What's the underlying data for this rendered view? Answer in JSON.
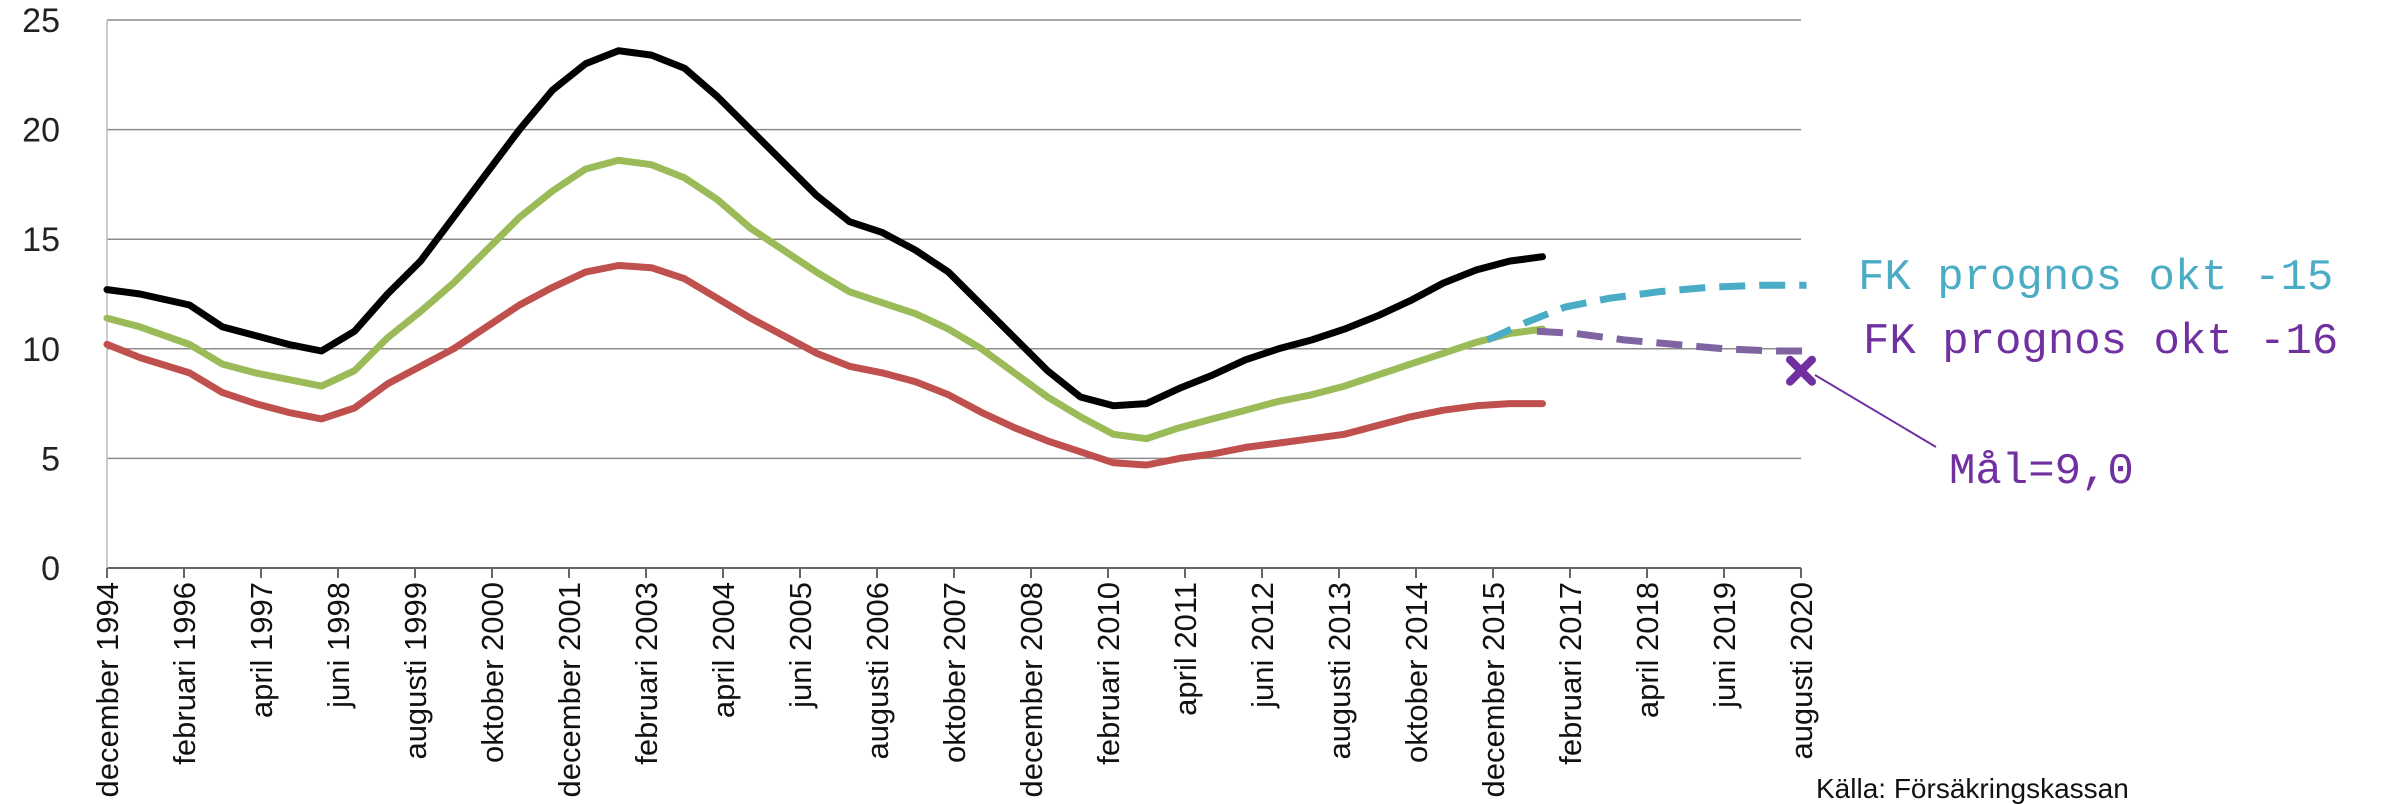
{
  "chart_data": {
    "type": "line",
    "title": "",
    "xlabel": "",
    "ylabel": "",
    "ylim": [
      0,
      25
    ],
    "yticks": [
      0,
      5,
      10,
      15,
      20,
      25
    ],
    "grid": "horizontal",
    "x_start": "december 1994",
    "x_end": "augusti 2020",
    "x_tick_labels": [
      "december 1994",
      "februari 1996",
      "april 1997",
      "juni 1998",
      "augusti 1999",
      "oktober 2000",
      "december 2001",
      "februari 2003",
      "april 2004",
      "juni 2005",
      "augusti 2006",
      "oktober 2007",
      "december 2008",
      "februari 2010",
      "april 2011",
      "juni 2012",
      "augusti 2013",
      "oktober 2014",
      "december 2015",
      "februari 2017",
      "april 2018",
      "juni 2019",
      "augusti 2020"
    ],
    "series": [
      {
        "color": "#000000",
        "style": "solid",
        "x": [
          "1994-12",
          "1995-06",
          "1996-03",
          "1996-09",
          "1997-03",
          "1997-09",
          "1998-03",
          "1998-09",
          "1999-03",
          "1999-09",
          "2000-03",
          "2000-09",
          "2001-03",
          "2001-09",
          "2002-03",
          "2002-09",
          "2003-03",
          "2003-09",
          "2004-03",
          "2004-09",
          "2005-03",
          "2005-09",
          "2006-03",
          "2006-09",
          "2007-03",
          "2007-09",
          "2008-03",
          "2008-09",
          "2009-03",
          "2009-09",
          "2010-03",
          "2010-09",
          "2011-03",
          "2011-09",
          "2012-03",
          "2012-09",
          "2013-03",
          "2013-09",
          "2014-03",
          "2014-09",
          "2015-03",
          "2015-09",
          "2016-03",
          "2016-09"
        ],
        "y": [
          12.7,
          12.5,
          12.0,
          11.0,
          10.6,
          10.2,
          9.9,
          10.8,
          12.5,
          14.0,
          16.0,
          18.0,
          20.0,
          21.8,
          23.0,
          23.6,
          23.4,
          22.8,
          21.5,
          20.0,
          18.5,
          17.0,
          15.8,
          15.3,
          14.5,
          13.5,
          12.0,
          10.5,
          9.0,
          7.8,
          7.4,
          7.5,
          8.2,
          8.8,
          9.5,
          10.0,
          10.4,
          10.9,
          11.5,
          12.2,
          13.0,
          13.6,
          14.0,
          14.2
        ]
      },
      {
        "color": "#9bbb59",
        "style": "solid",
        "x": [
          "1994-12",
          "1995-06",
          "1996-03",
          "1996-09",
          "1997-03",
          "1997-09",
          "1998-03",
          "1998-09",
          "1999-03",
          "1999-09",
          "2000-03",
          "2000-09",
          "2001-03",
          "2001-09",
          "2002-03",
          "2002-09",
          "2003-03",
          "2003-09",
          "2004-03",
          "2004-09",
          "2005-03",
          "2005-09",
          "2006-03",
          "2006-09",
          "2007-03",
          "2007-09",
          "2008-03",
          "2008-09",
          "2009-03",
          "2009-09",
          "2010-03",
          "2010-09",
          "2011-03",
          "2011-09",
          "2012-03",
          "2012-09",
          "2013-03",
          "2013-09",
          "2014-03",
          "2014-09",
          "2015-03",
          "2015-09",
          "2016-03",
          "2016-09"
        ],
        "y": [
          11.4,
          11.0,
          10.2,
          9.3,
          8.9,
          8.6,
          8.3,
          9.0,
          10.5,
          11.7,
          13.0,
          14.5,
          16.0,
          17.2,
          18.2,
          18.6,
          18.4,
          17.8,
          16.8,
          15.5,
          14.5,
          13.5,
          12.6,
          12.1,
          11.6,
          10.9,
          10.0,
          8.9,
          7.8,
          6.9,
          6.1,
          5.9,
          6.4,
          6.8,
          7.2,
          7.6,
          7.9,
          8.3,
          8.8,
          9.3,
          9.8,
          10.3,
          10.7,
          10.9
        ]
      },
      {
        "color": "#c0504d",
        "style": "solid",
        "x": [
          "1994-12",
          "1995-06",
          "1996-03",
          "1996-09",
          "1997-03",
          "1997-09",
          "1998-03",
          "1998-09",
          "1999-03",
          "1999-09",
          "2000-03",
          "2000-09",
          "2001-03",
          "2001-09",
          "2002-03",
          "2002-09",
          "2003-03",
          "2003-09",
          "2004-03",
          "2004-09",
          "2005-03",
          "2005-09",
          "2006-03",
          "2006-09",
          "2007-03",
          "2007-09",
          "2008-03",
          "2008-09",
          "2009-03",
          "2009-09",
          "2010-03",
          "2010-09",
          "2011-03",
          "2011-09",
          "2012-03",
          "2012-09",
          "2013-03",
          "2013-09",
          "2014-03",
          "2014-09",
          "2015-03",
          "2015-09",
          "2016-03",
          "2016-09"
        ],
        "y": [
          10.2,
          9.6,
          8.9,
          8.0,
          7.5,
          7.1,
          6.8,
          7.3,
          8.4,
          9.2,
          10.0,
          11.0,
          12.0,
          12.8,
          13.5,
          13.8,
          13.7,
          13.2,
          12.3,
          11.4,
          10.6,
          9.8,
          9.2,
          8.9,
          8.5,
          7.9,
          7.1,
          6.4,
          5.8,
          5.3,
          4.8,
          4.7,
          5.0,
          5.2,
          5.5,
          5.7,
          5.9,
          6.1,
          6.5,
          6.9,
          7.2,
          7.4,
          7.5,
          7.5
        ]
      },
      {
        "name": "FK prognos okt -15",
        "color": "#4bacc6",
        "style": "dashed",
        "x": [
          "2015-11",
          "2016-06",
          "2017-01",
          "2017-09",
          "2018-06",
          "2019-03",
          "2020-01",
          "2020-09"
        ],
        "y": [
          10.4,
          11.2,
          11.9,
          12.3,
          12.6,
          12.8,
          12.9,
          12.9
        ]
      },
      {
        "name": "FK prognos okt -16",
        "color": "#8064a2",
        "style": "dashed",
        "x": [
          "2016-08",
          "2017-03",
          "2017-12",
          "2018-09",
          "2019-06",
          "2020-03",
          "2020-09"
        ],
        "y": [
          10.8,
          10.7,
          10.4,
          10.2,
          10.0,
          9.9,
          9.9
        ]
      }
    ],
    "target": {
      "x": "2020-08",
      "y": 9.0,
      "marker": "x",
      "color": "#7030a0"
    }
  },
  "annotations": {
    "fk15_label": "FK prognos okt -15",
    "fk16_label": "FK prognos okt -16",
    "target_label": "Mål=9,0",
    "source": "Källa: Försäkringskassan"
  },
  "colors": {
    "black": "#000000",
    "green": "#9bbb59",
    "red": "#c0504d",
    "fk15": "#4bacc6",
    "fk16": "#8064a2",
    "target": "#7030a0",
    "grid": "#8c8c8c"
  }
}
